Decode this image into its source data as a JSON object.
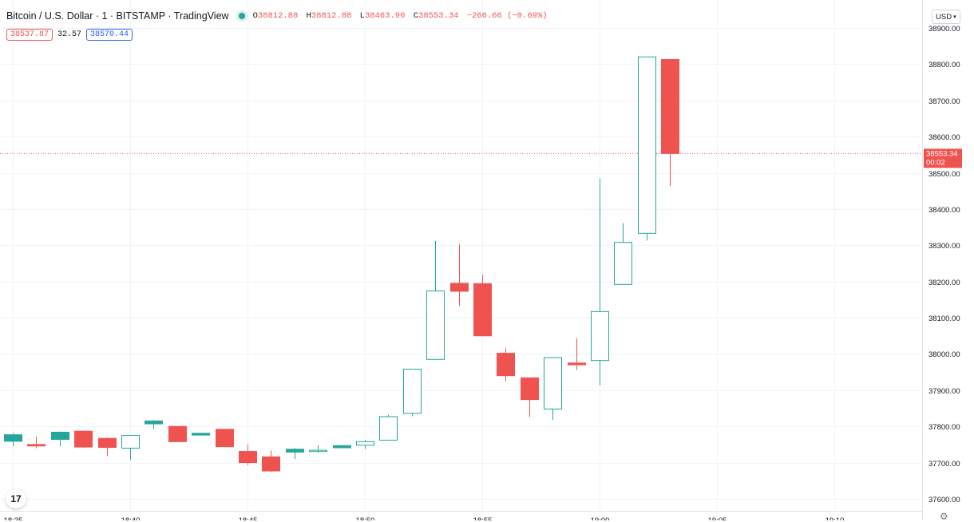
{
  "header": {
    "title": "Bitcoin / U.S. Dollar · 1 · BITSTAMP · TradingView",
    "ohlc": {
      "o_label": "O",
      "o": "38812.88",
      "h_label": "H",
      "h": "38812.88",
      "l_label": "L",
      "l": "38463.90",
      "c_label": "C",
      "c": "38553.34",
      "change": "−266.66 (−0.69%)"
    }
  },
  "spread": {
    "bid": "38537.87",
    "spread": "32.57",
    "ask": "38570.44"
  },
  "currency": "USD",
  "logo_text": "17",
  "colors": {
    "up": "#26a69a",
    "down": "#ef5350",
    "grid": "#f0f3fa",
    "axis_text": "#131722"
  },
  "chart_data": {
    "type": "candlestick",
    "title": "Bitcoin / U.S. Dollar · 1 · BITSTAMP",
    "ylim": [
      37560,
      38930
    ],
    "y_ticks": [
      37600,
      37700,
      37800,
      37900,
      38000,
      38100,
      38200,
      38300,
      38400,
      38500,
      38600,
      38700,
      38800,
      38900
    ],
    "y_tick_labels": [
      "37600.00",
      "37700.00",
      "37800.00",
      "37900.00",
      "38000.00",
      "38100.00",
      "38200.00",
      "38300.00",
      "38400.00",
      "38500.00",
      "38600.00",
      "38700.00",
      "38800.00",
      "38900.00"
    ],
    "x_tick_labels": [
      "18:35",
      "18:40",
      "18:45",
      "18:50",
      "18:55",
      "19:00",
      "19:05",
      "19:10"
    ],
    "current_price": {
      "label": "38553.34",
      "countdown": "00:02",
      "value": 38553.34
    },
    "candles": [
      {
        "time": "18:35",
        "open": 37759,
        "high": 37782,
        "low": 37745,
        "close": 37777,
        "fill": "up"
      },
      {
        "time": "18:36",
        "open": 37750,
        "high": 37772,
        "low": 37740,
        "close": 37746,
        "fill": "down"
      },
      {
        "time": "18:37",
        "open": 37764,
        "high": 37786,
        "low": 37745,
        "close": 37784,
        "fill": "up"
      },
      {
        "time": "18:38",
        "open": 37787,
        "high": 37787,
        "low": 37741,
        "close": 37743,
        "fill": "down"
      },
      {
        "time": "18:39",
        "open": 37767,
        "high": 37769,
        "low": 37718,
        "close": 37742,
        "fill": "down"
      },
      {
        "time": "18:40",
        "open": 37740,
        "high": 37776,
        "low": 37708,
        "close": 37775,
        "fill": "hollow"
      },
      {
        "time": "18:41",
        "open": 37807,
        "high": 37818,
        "low": 37793,
        "close": 37815,
        "fill": "up"
      },
      {
        "time": "18:42",
        "open": 37800,
        "high": 37800,
        "low": 37757,
        "close": 37758,
        "fill": "down"
      },
      {
        "time": "18:43",
        "open": 37776,
        "high": 37782,
        "low": 37776,
        "close": 37781,
        "fill": "up"
      },
      {
        "time": "18:44",
        "open": 37792,
        "high": 37792,
        "low": 37743,
        "close": 37744,
        "fill": "down"
      },
      {
        "time": "18:45",
        "open": 37731,
        "high": 37750,
        "low": 37693,
        "close": 37700,
        "fill": "down"
      },
      {
        "time": "18:46",
        "open": 37716,
        "high": 37733,
        "low": 37674,
        "close": 37677,
        "fill": "down"
      },
      {
        "time": "18:47",
        "open": 37729,
        "high": 37740,
        "low": 37710,
        "close": 37737,
        "fill": "up"
      },
      {
        "time": "18:48",
        "open": 37731,
        "high": 37748,
        "low": 37727,
        "close": 37734,
        "fill": "hollow"
      },
      {
        "time": "18:49",
        "open": 37741,
        "high": 37748,
        "low": 37741,
        "close": 37747,
        "fill": "up"
      },
      {
        "time": "18:50",
        "open": 37748,
        "high": 37763,
        "low": 37738,
        "close": 37758,
        "fill": "hollow"
      },
      {
        "time": "18:51",
        "open": 37762,
        "high": 37832,
        "low": 37762,
        "close": 37827,
        "fill": "hollow"
      },
      {
        "time": "18:52",
        "open": 37836,
        "high": 37958,
        "low": 37828,
        "close": 37958,
        "fill": "hollow"
      },
      {
        "time": "18:53",
        "open": 37985,
        "high": 38312,
        "low": 37985,
        "close": 38174,
        "fill": "hollow"
      },
      {
        "time": "18:54",
        "open": 38195,
        "high": 38302,
        "low": 38132,
        "close": 38173,
        "fill": "down"
      },
      {
        "time": "18:55",
        "open": 38194,
        "high": 38218,
        "low": 38050,
        "close": 38050,
        "fill": "down"
      },
      {
        "time": "18:56",
        "open": 38002,
        "high": 38016,
        "low": 37925,
        "close": 37940,
        "fill": "down"
      },
      {
        "time": "18:57",
        "open": 37934,
        "high": 37934,
        "low": 37826,
        "close": 37874,
        "fill": "down"
      },
      {
        "time": "18:58",
        "open": 37848,
        "high": 37990,
        "low": 37818,
        "close": 37990,
        "fill": "hollow"
      },
      {
        "time": "18:59",
        "open": 37975,
        "high": 38043,
        "low": 37956,
        "close": 37970,
        "fill": "down"
      },
      {
        "time": "19:00",
        "open": 37982,
        "high": 38484,
        "low": 37913,
        "close": 38117,
        "fill": "hollow"
      },
      {
        "time": "19:01",
        "open": 38192,
        "high": 38361,
        "low": 38192,
        "close": 38308,
        "fill": "hollow"
      },
      {
        "time": "19:02",
        "open": 38333,
        "high": 38820,
        "low": 38313,
        "close": 38820,
        "fill": "hollow"
      },
      {
        "time": "19:03",
        "open": 38812.88,
        "high": 38812.88,
        "low": 38463.9,
        "close": 38553.34,
        "fill": "down"
      }
    ]
  }
}
